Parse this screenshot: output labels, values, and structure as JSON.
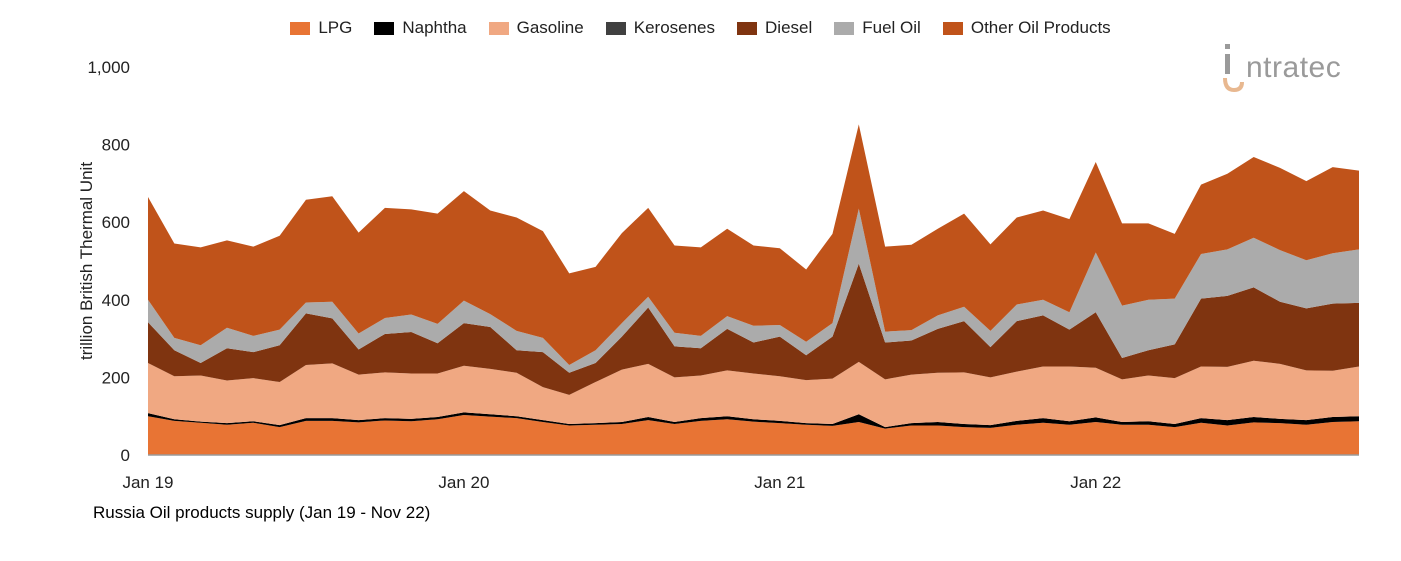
{
  "logo": {
    "text": "intratec",
    "colors": {
      "text": "#9A9A9A",
      "accent": "#E8B890"
    }
  },
  "footer_title": "Russia Oil products supply (Jan 19 - Nov 22)",
  "chart_data": {
    "type": "area",
    "stacked": true,
    "title": "",
    "xlabel": "",
    "ylabel": "trillion British Thermal Unit",
    "ylim": [
      0,
      1000
    ],
    "yticks": [
      0,
      200,
      400,
      600,
      800,
      1000
    ],
    "ytick_labels": [
      "0",
      "200",
      "400",
      "600",
      "800",
      "1,000"
    ],
    "x_start": "Jan 19",
    "x_end": "Nov 22",
    "x_frequency": "monthly",
    "xtick_labels": [
      {
        "month_index": 0,
        "label": "Jan 19"
      },
      {
        "month_index": 12,
        "label": "Jan 20"
      },
      {
        "month_index": 24,
        "label": "Jan 21"
      },
      {
        "month_index": 36,
        "label": "Jan 22"
      }
    ],
    "grid": false,
    "legend_position": "top",
    "series": [
      {
        "name": "LPG",
        "color": "#E87434",
        "values": [
          100,
          88,
          83,
          78,
          83,
          72,
          88,
          88,
          84,
          89,
          87,
          92,
          103,
          99,
          95,
          85,
          76,
          78,
          80,
          90,
          80,
          88,
          92,
          86,
          82,
          78,
          75,
          85,
          68,
          76,
          76,
          72,
          70,
          78,
          83,
          78,
          85,
          78,
          78,
          72,
          83,
          76,
          84,
          82,
          78,
          85,
          87
        ]
      },
      {
        "name": "Naphtha",
        "color": "#000000",
        "values": [
          8,
          4,
          3,
          4,
          4,
          5,
          7,
          7,
          6,
          6,
          6,
          6,
          7,
          6,
          5,
          5,
          4,
          4,
          5,
          8,
          5,
          7,
          8,
          6,
          6,
          4,
          5,
          20,
          4,
          6,
          9,
          8,
          7,
          10,
          12,
          9,
          12,
          7,
          9,
          8,
          12,
          14,
          14,
          11,
          12,
          13,
          13
        ]
      },
      {
        "name": "Gasoline",
        "color": "#F0A882",
        "values": [
          129,
          111,
          119,
          110,
          111,
          111,
          137,
          141,
          117,
          118,
          117,
          112,
          120,
          117,
          112,
          85,
          75,
          106,
          135,
          137,
          115,
          110,
          118,
          118,
          115,
          111,
          117,
          135,
          123,
          125,
          127,
          133,
          123,
          127,
          133,
          141,
          128,
          110,
          118,
          118,
          133,
          137,
          145,
          142,
          128,
          119,
          128
        ]
      },
      {
        "name": "Kerosenes",
        "color": "#404040",
        "values": [
          0,
          0,
          0,
          0,
          0,
          0,
          0,
          0,
          0,
          0,
          0,
          0,
          0,
          0,
          0,
          0,
          0,
          0,
          0,
          0,
          0,
          0,
          0,
          0,
          0,
          0,
          0,
          0,
          0,
          0,
          0,
          0,
          0,
          0,
          0,
          0,
          0,
          0,
          0,
          0,
          0,
          0,
          0,
          0,
          0,
          0,
          0
        ]
      },
      {
        "name": "Diesel",
        "color": "#7F3410",
        "values": [
          105,
          67,
          32,
          83,
          67,
          95,
          133,
          116,
          65,
          99,
          107,
          78,
          110,
          108,
          58,
          90,
          57,
          49,
          85,
          145,
          80,
          70,
          107,
          80,
          102,
          64,
          108,
          253,
          95,
          88,
          113,
          132,
          78,
          130,
          132,
          95,
          143,
          55,
          65,
          87,
          175,
          183,
          189,
          160,
          160,
          173,
          164
        ]
      },
      {
        "name": "Fuel Oil",
        "color": "#ABABAB",
        "values": [
          58,
          32,
          46,
          53,
          42,
          40,
          28,
          43,
          41,
          41,
          45,
          50,
          58,
          33,
          50,
          37,
          20,
          33,
          35,
          28,
          35,
          32,
          33,
          43,
          30,
          35,
          35,
          142,
          28,
          27,
          35,
          37,
          42,
          43,
          40,
          45,
          154,
          135,
          130,
          118,
          115,
          120,
          128,
          133,
          124,
          130,
          138
        ]
      },
      {
        "name": "Other Oil Products",
        "color": "#C0531A",
        "values": [
          265,
          243,
          252,
          225,
          230,
          242,
          265,
          272,
          260,
          284,
          271,
          284,
          282,
          267,
          292,
          275,
          236,
          215,
          232,
          229,
          225,
          228,
          225,
          207,
          198,
          186,
          230,
          217,
          219,
          220,
          223,
          240,
          223,
          224,
          230,
          240,
          233,
          212,
          197,
          167,
          179,
          195,
          208,
          212,
          204,
          222,
          203
        ]
      }
    ]
  }
}
